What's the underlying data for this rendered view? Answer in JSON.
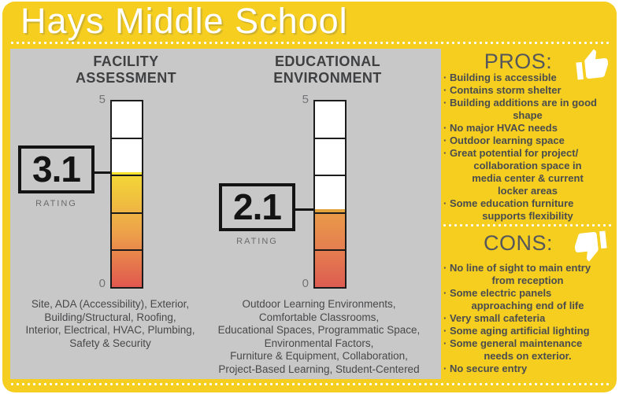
{
  "header": {
    "title": "Hays Middle School"
  },
  "charts": [
    {
      "title": "FACILITY\nASSESSMENT",
      "rating": "3.1",
      "rating_label": "RATING",
      "scale_top": "5",
      "scale_bottom": "0",
      "fill_percent": 62,
      "fill_gradient": [
        "#f3d936",
        "#eda24a",
        "#e0584e"
      ],
      "fill_cap_color": "#f6e42e",
      "description": "Site, ADA (Accessibility), Exterior,\nBuilding/Structural, Roofing,\nInterior, Electrical, HVAC, Plumbing,\nSafety & Security"
    },
    {
      "title": "EDUCATIONAL\nENVIRONMENT",
      "rating": "2.1",
      "rating_label": "RATING",
      "scale_top": "5",
      "scale_bottom": "0",
      "fill_percent": 42,
      "fill_gradient": [
        "#ea9d49",
        "#e57e50",
        "#dd5c51"
      ],
      "fill_cap_color": "#e2a23c",
      "description": "Outdoor Learning Environments,\nComfortable Classrooms,\nEducational Spaces, Programmatic Space,\nEnvironmental Factors,\nFurniture & Equipment, Collaboration,\nProject-Based Learning, Student-Centered"
    }
  ],
  "pros": {
    "title": "PROS:",
    "icon": "thumbs-up-icon",
    "items": [
      [
        "Building is accessible"
      ],
      [
        "Contains storm shelter"
      ],
      [
        "Building additions are in good",
        "shape"
      ],
      [
        "No major HVAC needs"
      ],
      [
        "Outdoor learning space"
      ],
      [
        "Great potential for project/",
        "collaboration space in",
        "media center & current",
        "locker areas"
      ],
      [
        "Some education furniture",
        "supports flexibility"
      ]
    ]
  },
  "cons": {
    "title": "CONS:",
    "icon": "thumbs-down-icon",
    "items": [
      [
        "No line of sight to main entry",
        "from reception"
      ],
      [
        "Some electric panels",
        "approaching end of life"
      ],
      [
        "Very small cafeteria"
      ],
      [
        "Some aging artificial lighting"
      ],
      [
        "Some general maintenance",
        "needs on exterior."
      ],
      [
        "No secure entry"
      ]
    ]
  },
  "colors": {
    "background_yellow": "#f5ce20",
    "panel_gray": "#c9c8c8",
    "text_dark": "#414042",
    "text_gray": "#6d6e71",
    "header_text": "#ffffff",
    "gauge_red": "#e0584e",
    "gauge_orange": "#ec9b45",
    "gauge_yellow": "#f3d936"
  },
  "chart_data": [
    {
      "type": "bar",
      "title": "FACILITY ASSESSMENT",
      "categories": [
        "Facility Assessment"
      ],
      "values": [
        3.1
      ],
      "ylim": [
        0,
        5
      ],
      "ylabel": "RATING",
      "annotations": [
        "3.1"
      ],
      "tick_interval": 1,
      "notes": "Site, ADA (Accessibility), Exterior, Building/Structural, Roofing, Interior, Electrical, HVAC, Plumbing, Safety & Security"
    },
    {
      "type": "bar",
      "title": "EDUCATIONAL ENVIRONMENT",
      "categories": [
        "Educational Environment"
      ],
      "values": [
        2.1
      ],
      "ylim": [
        0,
        5
      ],
      "ylabel": "RATING",
      "annotations": [
        "2.1"
      ],
      "tick_interval": 1,
      "notes": "Outdoor Learning Environments, Comfortable Classrooms, Educational Spaces, Programmatic Space, Environmental Factors, Furniture & Equipment, Collaboration, Project-Based Learning, Student-Centered"
    }
  ]
}
